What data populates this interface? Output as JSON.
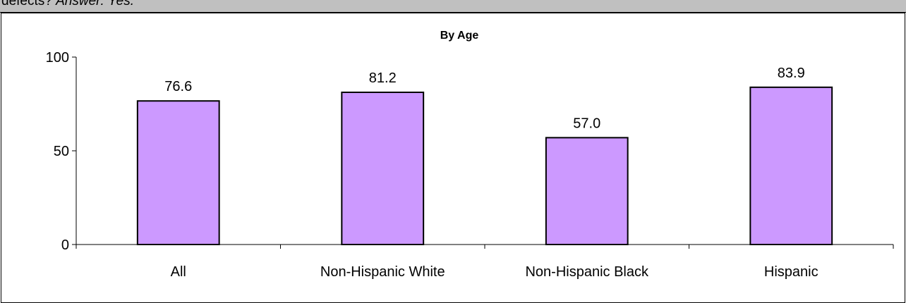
{
  "header": {
    "text_prefix": "defects?",
    "answer_label": "Answer:",
    "answer_value": "Yes."
  },
  "chart_data": {
    "type": "bar",
    "title": "By Age",
    "categories": [
      "All",
      "Non-Hispanic White",
      "Non-Hispanic Black",
      "Hispanic"
    ],
    "values": [
      76.6,
      81.2,
      57.0,
      83.9
    ],
    "value_labels": [
      "76.6",
      "81.2",
      "57.0",
      "83.9"
    ],
    "yticks": [
      "0",
      "50",
      "100"
    ],
    "ytick_values": [
      0,
      50,
      100
    ],
    "ylim": [
      0,
      100
    ],
    "xlabel": "",
    "ylabel": "",
    "bar_color": "#cc99ff",
    "bar_border": "#000000",
    "legend": "none",
    "grid": false
  }
}
